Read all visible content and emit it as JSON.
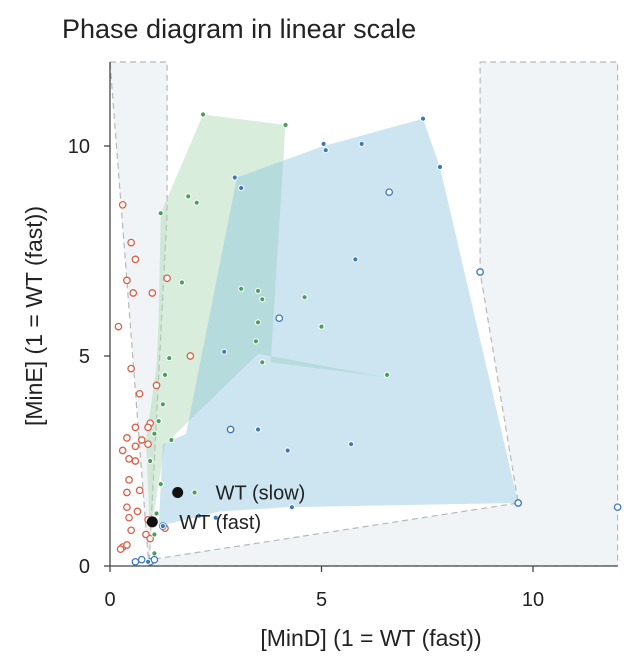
{
  "chart_data": {
    "type": "scatter",
    "title": "Phase diagram in linear scale",
    "xlabel": "[MinD] (1 = WT (fast))",
    "ylabel": "[MinE]  (1 = WT (fast))",
    "xlim": [
      0,
      12
    ],
    "ylim": [
      0,
      12
    ],
    "xticks": [
      0,
      5,
      10
    ],
    "yticks": [
      0,
      5,
      10
    ],
    "xtick_labels": [
      "0",
      "5",
      "10"
    ],
    "ytick_labels": [
      "0",
      "5",
      "10"
    ],
    "grid": false,
    "colors": {
      "red": "#d9604a",
      "green": "#4aa05a",
      "blue": "#3b78bf",
      "green_fill": "#a8d8b0",
      "blue_fill": "#8ec5e0",
      "background_region": "#e3ebf0",
      "dashed_outline": "#b8b8b8"
    },
    "regions": [
      {
        "key": "bg-left",
        "color": "background_region",
        "dashed": true,
        "points": [
          [
            0,
            12
          ],
          [
            1.35,
            12
          ],
          [
            1.35,
            8.4
          ],
          [
            0.92,
            0
          ]
        ]
      },
      {
        "key": "bg-right",
        "color": "background_region",
        "dashed": true,
        "points": [
          [
            8.75,
            12
          ],
          [
            12,
            12
          ],
          [
            12,
            0
          ],
          [
            0.95,
            0
          ],
          [
            0.95,
            0.15
          ],
          [
            9.65,
            1.5
          ],
          [
            8.75,
            7.0
          ]
        ]
      },
      {
        "key": "green-hull",
        "color": "green_fill",
        "dashed": false,
        "points": [
          [
            1.2,
            8.4
          ],
          [
            2.2,
            10.75
          ],
          [
            4.15,
            10.5
          ],
          [
            3.8,
            4.85
          ],
          [
            6.5,
            4.5
          ],
          [
            3.5,
            5.05
          ],
          [
            1.3,
            2.9
          ],
          [
            0.95,
            0.7
          ],
          [
            0.85,
            3.0
          ],
          [
            1.1,
            4.75
          ],
          [
            1.15,
            5.9
          ]
        ]
      },
      {
        "key": "blue-hull",
        "color": "blue_fill",
        "dashed": false,
        "points": [
          [
            1.15,
            0.95
          ],
          [
            2.6,
            1.3
          ],
          [
            4.2,
            1.4
          ],
          [
            9.65,
            1.5
          ],
          [
            7.8,
            9.5
          ],
          [
            7.4,
            10.65
          ],
          [
            5.05,
            10.0
          ],
          [
            3.0,
            9.25
          ],
          [
            1.8,
            3.15
          ],
          [
            1.25,
            2.9
          ]
        ]
      }
    ],
    "series": [
      {
        "key": "red",
        "filled": false,
        "points": [
          [
            0.3,
            8.6
          ],
          [
            0.5,
            7.7
          ],
          [
            0.6,
            7.3
          ],
          [
            0.4,
            6.8
          ],
          [
            0.55,
            6.5
          ],
          [
            1.0,
            6.5
          ],
          [
            1.35,
            6.85
          ],
          [
            0.2,
            5.7
          ],
          [
            0.5,
            4.7
          ],
          [
            1.9,
            5.0
          ],
          [
            1.1,
            4.3
          ],
          [
            0.7,
            4.1
          ],
          [
            0.6,
            3.3
          ],
          [
            0.95,
            3.4
          ],
          [
            0.9,
            3.3
          ],
          [
            0.4,
            3.05
          ],
          [
            0.75,
            3.0
          ],
          [
            0.9,
            2.9
          ],
          [
            0.6,
            2.85
          ],
          [
            0.3,
            2.75
          ],
          [
            0.45,
            2.55
          ],
          [
            0.6,
            2.5
          ],
          [
            0.45,
            2.05
          ],
          [
            0.7,
            1.8
          ],
          [
            0.4,
            1.75
          ],
          [
            0.4,
            1.4
          ],
          [
            0.65,
            1.3
          ],
          [
            0.45,
            1.15
          ],
          [
            0.9,
            1.1
          ],
          [
            0.5,
            0.85
          ],
          [
            0.85,
            0.75
          ],
          [
            1.3,
            0.9
          ],
          [
            0.3,
            0.45
          ],
          [
            0.4,
            0.5
          ],
          [
            0.25,
            0.4
          ],
          [
            0.95,
            0.65
          ]
        ]
      },
      {
        "key": "green",
        "filled": true,
        "points": [
          [
            2.2,
            10.75
          ],
          [
            4.15,
            10.5
          ],
          [
            1.85,
            8.8
          ],
          [
            2.05,
            8.65
          ],
          [
            1.2,
            8.4
          ],
          [
            1.7,
            6.75
          ],
          [
            3.1,
            6.6
          ],
          [
            3.5,
            6.55
          ],
          [
            3.6,
            6.35
          ],
          [
            4.6,
            6.4
          ],
          [
            3.5,
            5.8
          ],
          [
            5.0,
            5.7
          ],
          [
            3.45,
            5.35
          ],
          [
            1.4,
            4.95
          ],
          [
            3.6,
            4.85
          ],
          [
            6.55,
            4.55
          ],
          [
            1.3,
            4.55
          ],
          [
            1.25,
            3.85
          ],
          [
            1.15,
            3.45
          ],
          [
            1.05,
            3.15
          ],
          [
            1.45,
            3.0
          ],
          [
            0.95,
            2.5
          ],
          [
            1.2,
            1.95
          ],
          [
            2.0,
            1.75
          ],
          [
            1.1,
            1.25
          ],
          [
            1.05,
            0.75
          ],
          [
            1.05,
            0.3
          ]
        ]
      },
      {
        "key": "blue",
        "filled": false,
        "points": [
          [
            6.6,
            8.9
          ],
          [
            8.75,
            7.0
          ],
          [
            4.0,
            5.9
          ],
          [
            2.85,
            3.25
          ],
          [
            9.65,
            1.5
          ],
          [
            12,
            1.4
          ],
          [
            1.25,
            0.95
          ],
          [
            0.6,
            0.1
          ],
          [
            0.75,
            0.15
          ],
          [
            0.95,
            0.1
          ],
          [
            1.05,
            0.15
          ]
        ]
      },
      {
        "key": "blue",
        "filled": true,
        "points": [
          [
            7.4,
            10.65
          ],
          [
            5.95,
            10.05
          ],
          [
            5.05,
            10.05
          ],
          [
            5.1,
            9.9
          ],
          [
            7.8,
            9.5
          ],
          [
            2.95,
            9.25
          ],
          [
            3.1,
            9.0
          ],
          [
            5.8,
            7.3
          ],
          [
            2.7,
            5.1
          ],
          [
            3.5,
            3.25
          ],
          [
            4.2,
            2.75
          ],
          [
            5.7,
            2.9
          ],
          [
            4.3,
            1.4
          ],
          [
            2.5,
            1.15
          ],
          [
            2.1,
            1.2
          ],
          [
            1.25,
            0.95
          ],
          [
            0.9,
            0.1
          ]
        ]
      }
    ],
    "annotations": [
      {
        "label": "WT (slow)",
        "x": 1.6,
        "y": 1.75
      },
      {
        "label": "WT (fast)",
        "x": 1.0,
        "y": 1.05
      }
    ]
  }
}
